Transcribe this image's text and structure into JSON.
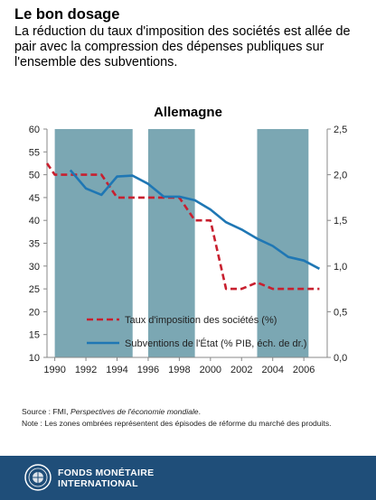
{
  "header": {
    "title": "Le bon dosage",
    "subtitle": "La réduction du taux d'imposition des sociétés est allée de pair avec la compression des dépenses publiques sur l'ensemble des subventions."
  },
  "chart_data": {
    "type": "line",
    "title": "Allemagne",
    "x_ticks": [
      "1990",
      "1992",
      "1994",
      "1996",
      "1998",
      "2000",
      "2002",
      "2004",
      "2006"
    ],
    "xlim": [
      1989.5,
      2007.5
    ],
    "left_axis": {
      "ylim": [
        10,
        60
      ],
      "ticks": [
        "10",
        "15",
        "20",
        "25",
        "30",
        "35",
        "40",
        "45",
        "50",
        "55",
        "60"
      ]
    },
    "right_axis": {
      "ylim": [
        0,
        2.5
      ],
      "ticks": [
        "0,0",
        "0,5",
        "1,0",
        "1,5",
        "2,0",
        "2,5"
      ]
    },
    "shaded_periods": [
      [
        1990,
        1995
      ],
      [
        1996,
        1999
      ],
      [
        2003,
        2006.3
      ]
    ],
    "series": [
      {
        "name": "Taux d'imposition des sociétés (%)",
        "axis": "left",
        "style": "dashed",
        "color": "#c8202f",
        "points": [
          [
            1989.5,
            52.5
          ],
          [
            1990,
            50
          ],
          [
            1991,
            50
          ],
          [
            1992,
            50
          ],
          [
            1993,
            50
          ],
          [
            1994,
            45
          ],
          [
            1995,
            45
          ],
          [
            1996,
            45
          ],
          [
            1997,
            45
          ],
          [
            1998,
            45
          ],
          [
            1999,
            40
          ],
          [
            2000,
            40
          ],
          [
            2001,
            25
          ],
          [
            2002,
            25
          ],
          [
            2003,
            26.4
          ],
          [
            2004,
            25
          ],
          [
            2005,
            25
          ],
          [
            2006,
            25
          ],
          [
            2007,
            25
          ]
        ]
      },
      {
        "name": "Subventions de l'État (% PIB, éch. de dr.)",
        "axis": "right",
        "style": "solid",
        "color": "#1f77b4",
        "points": [
          [
            1991,
            2.05
          ],
          [
            1992,
            1.85
          ],
          [
            1993,
            1.78
          ],
          [
            1994,
            1.98
          ],
          [
            1995,
            1.99
          ],
          [
            1996,
            1.9
          ],
          [
            1997,
            1.76
          ],
          [
            1998,
            1.76
          ],
          [
            1999,
            1.72
          ],
          [
            2000,
            1.62
          ],
          [
            2001,
            1.48
          ],
          [
            2002,
            1.4
          ],
          [
            2003,
            1.3
          ],
          [
            2004,
            1.22
          ],
          [
            2005,
            1.1
          ],
          [
            2006,
            1.06
          ],
          [
            2007,
            0.97
          ]
        ]
      }
    ]
  },
  "notes": {
    "source_prefix": "Source : FMI, ",
    "source_italic": "Perspectives de l'économie mondiale",
    "source_suffix": ".",
    "note": "Note : Les zones ombrées représentent des épisodes de réforme du marché des produits."
  },
  "footer": {
    "org_line1": "FONDS MONÉTAIRE",
    "org_line2": "INTERNATIONAL"
  },
  "colors": {
    "shade": "#7ba7b3",
    "footer": "#1f4e79",
    "tax_line": "#c8202f",
    "subsidy_line": "#1f77b4"
  }
}
